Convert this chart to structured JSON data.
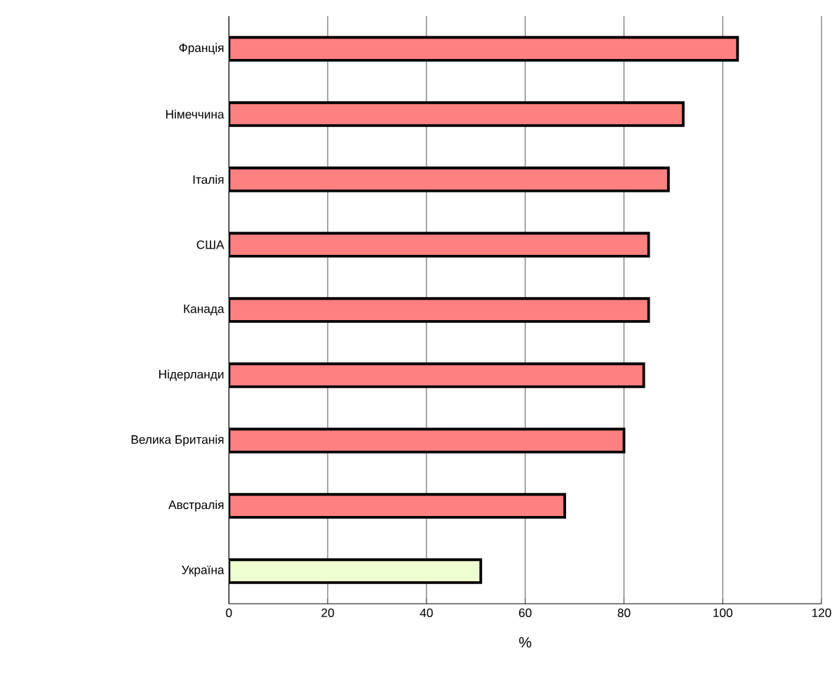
{
  "chart_data": {
    "type": "bar",
    "orientation": "horizontal",
    "xlabel": "%",
    "categories": [
      "Франція",
      "Німеччина",
      "Італія",
      "США",
      "Канада",
      "Нідерланди",
      "Велика Британія",
      "Австралія",
      "Україна"
    ],
    "values": [
      103,
      92,
      89,
      85,
      85,
      84,
      80,
      68,
      51
    ],
    "colors": [
      "#ff8080",
      "#ff8080",
      "#ff8080",
      "#ff8080",
      "#ff8080",
      "#ff8080",
      "#ff8080",
      "#ff8080",
      "#eeffd0"
    ],
    "xlim": [
      0,
      120
    ],
    "xticks": [
      0,
      20,
      40,
      60,
      80,
      100,
      120
    ],
    "grid": "x"
  }
}
